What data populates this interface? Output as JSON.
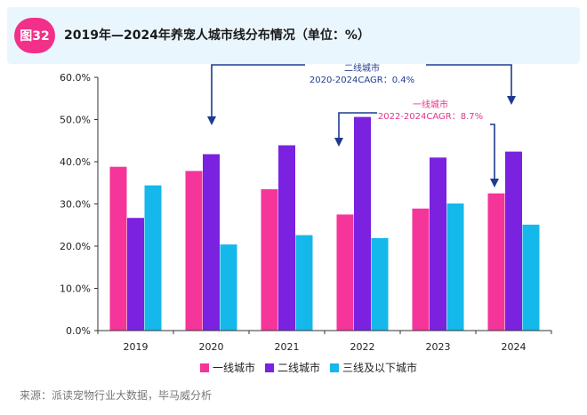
{
  "header": {
    "badge": "图32",
    "title": "2019年—2024年养宠人城市线分布情况（单位：%）"
  },
  "source": "来源：派读宠物行业大数据，毕马威分析",
  "colors": {
    "tier1": "#f5359a",
    "tier2": "#7a22e0",
    "tier3": "#14b8ea",
    "annotation_blue": "#1f3b8f",
    "annotation_pink": "#e0368c"
  },
  "annotations": {
    "tier2": {
      "line1": "二线城市",
      "line2": "2020-2024CAGR：0.4%"
    },
    "tier1": {
      "line1": "一线城市",
      "line2": "2022-2024CAGR：8.7%"
    }
  },
  "chart_data": {
    "type": "bar",
    "title": "2019年—2024年养宠人城市线分布情况（单位：%）",
    "categories": [
      "2019",
      "2020",
      "2021",
      "2022",
      "2023",
      "2024"
    ],
    "series": [
      {
        "name": "一线城市",
        "values": [
          38.8,
          37.8,
          33.5,
          27.5,
          28.9,
          32.5
        ]
      },
      {
        "name": "二线城市",
        "values": [
          26.7,
          41.8,
          43.9,
          50.6,
          41.0,
          42.4
        ]
      },
      {
        "name": "三线及以下城市",
        "values": [
          34.4,
          20.4,
          22.6,
          21.9,
          30.1,
          25.1
        ]
      }
    ],
    "ylim": [
      0,
      60
    ],
    "yticks": [
      "0.0%",
      "10.0%",
      "20.0%",
      "30.0%",
      "40.0%",
      "50.0%",
      "60.0%"
    ],
    "xlabel": "",
    "ylabel": "",
    "legend_position": "bottom"
  }
}
